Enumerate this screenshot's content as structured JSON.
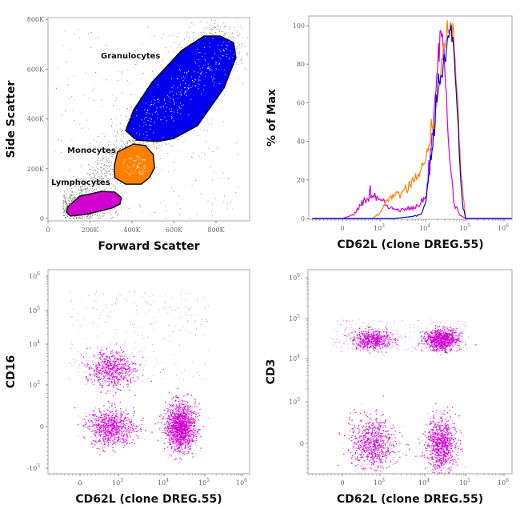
{
  "chart_data": [
    {
      "type": "scatter",
      "xlabel": "Forward Scatter",
      "ylabel": "Side Scatter",
      "xlim": [
        0,
        960000
      ],
      "ylim": [
        0,
        810000
      ],
      "xticks": [
        {
          "v": 0,
          "label": "0"
        },
        {
          "v": 200000,
          "label": "200K"
        },
        {
          "v": 400000,
          "label": "400K"
        },
        {
          "v": 600000,
          "label": "600K"
        },
        {
          "v": 800000,
          "label": "800K"
        }
      ],
      "yticks": [
        {
          "v": 0,
          "label": "0"
        },
        {
          "v": 200000,
          "label": "200K"
        },
        {
          "v": 400000,
          "label": "400K"
        },
        {
          "v": 600000,
          "label": "600K"
        },
        {
          "v": 800000,
          "label": "800K"
        }
      ],
      "gates": [
        {
          "name": "Granulocytes",
          "color": "#0000ee",
          "polygon": [
            [
              370,
              354
            ],
            [
              419,
              315
            ],
            [
              522,
              309
            ],
            [
              598,
              321
            ],
            [
              712,
              373
            ],
            [
              838,
              524
            ],
            [
              895,
              646
            ],
            [
              884,
              707
            ],
            [
              819,
              733
            ],
            [
              743,
              733
            ],
            [
              636,
              675
            ],
            [
              495,
              547
            ],
            [
              408,
              437
            ]
          ]
        },
        {
          "name": "Monocytes",
          "color": "#ff8000",
          "polygon": [
            [
              331,
              267
            ],
            [
              408,
              299
            ],
            [
              463,
              293
            ],
            [
              501,
              257
            ],
            [
              507,
              203
            ],
            [
              483,
              164
            ],
            [
              444,
              138
            ],
            [
              370,
              138
            ],
            [
              318,
              164
            ],
            [
              316,
              212
            ]
          ]
        },
        {
          "name": "Lymphocytes",
          "color": "#d000d0",
          "polygon": [
            [
              95,
              48
            ],
            [
              152,
              90
            ],
            [
              255,
              109
            ],
            [
              318,
              106
            ],
            [
              349,
              84
            ],
            [
              343,
              58
            ],
            [
              305,
              42
            ],
            [
              179,
              16
            ],
            [
              107,
              10
            ],
            [
              88,
              26
            ]
          ]
        }
      ],
      "gate_units": "K",
      "background_color": "#888888"
    },
    {
      "type": "line",
      "xlabel": "CD62L (clone DREG.55)",
      "ylabel": "% of Max",
      "xscale": "biexponential",
      "ylim": [
        0,
        105
      ],
      "xticks": [
        {
          "v": 0,
          "base": "0",
          "exp": ""
        },
        {
          "v": 1000,
          "base": "10",
          "exp": "3"
        },
        {
          "v": 10000,
          "base": "10",
          "exp": "4"
        },
        {
          "v": 100000,
          "base": "10",
          "exp": "5"
        },
        {
          "v": 1000000,
          "base": "10",
          "exp": "6"
        }
      ],
      "yticks": [
        {
          "v": 0,
          "label": "0"
        },
        {
          "v": 20,
          "label": "20"
        },
        {
          "v": 40,
          "label": "40"
        },
        {
          "v": 60,
          "label": "60"
        },
        {
          "v": 80,
          "label": "80"
        },
        {
          "v": 100,
          "label": "100"
        }
      ],
      "series": [
        {
          "color": "#d000d0",
          "x": [
            -800,
            0,
            300,
            600,
            800,
            1000,
            1500,
            2000,
            3000,
            5000,
            7000,
            10000,
            15000,
            20000,
            25000,
            30000,
            40000,
            50000,
            70000,
            100000,
            1000000
          ],
          "y": [
            0,
            0,
            2,
            10,
            12,
            11,
            6,
            5,
            5,
            5,
            7,
            10,
            45,
            80,
            100,
            80,
            30,
            10,
            2,
            0,
            0
          ]
        },
        {
          "color": "#ff8000",
          "x": [
            -800,
            800,
            1000,
            1500,
            2000,
            3000,
            5000,
            7000,
            10000,
            15000,
            20000,
            30000,
            40000,
            50000,
            60000,
            80000,
            100000,
            1000000
          ],
          "y": [
            0,
            0,
            3,
            10,
            12,
            14,
            18,
            22,
            28,
            50,
            60,
            90,
            100,
            98,
            70,
            20,
            0,
            0
          ]
        },
        {
          "color": "#0000ee",
          "x": [
            -800,
            2000,
            5000,
            8000,
            10000,
            15000,
            20000,
            30000,
            40000,
            50000,
            60000,
            80000,
            100000,
            1000000
          ],
          "y": [
            0,
            0,
            1,
            2,
            8,
            40,
            65,
            85,
            95,
            92,
            60,
            10,
            0,
            0
          ]
        }
      ]
    },
    {
      "type": "scatter",
      "xlabel": "CD62L (clone DREG.55)",
      "ylabel": "CD16",
      "xscale": "biexponential",
      "yscale": "biexponential",
      "color": "#d000d0",
      "xticks": [
        {
          "v": 0,
          "base": "0",
          "exp": ""
        },
        {
          "v": 1000,
          "base": "10",
          "exp": "3"
        },
        {
          "v": 10000,
          "base": "10",
          "exp": "4"
        },
        {
          "v": 100000,
          "base": "10",
          "exp": "5"
        },
        {
          "v": 1000000,
          "base": "10",
          "exp": "6"
        }
      ],
      "yticks": [
        {
          "v": -1000,
          "base": "-10",
          "exp": "3"
        },
        {
          "v": 0,
          "base": "0",
          "exp": ""
        },
        {
          "v": 1000,
          "base": "10",
          "exp": "3"
        },
        {
          "v": 10000,
          "base": "10",
          "exp": "4"
        },
        {
          "v": 100000,
          "base": "10",
          "exp": "5"
        },
        {
          "v": 1000000,
          "base": "10",
          "exp": "6"
        }
      ],
      "clusters": [
        {
          "x": 800,
          "y": 2500
        },
        {
          "x": 800,
          "y": 0
        },
        {
          "x": 25000,
          "y": 0
        }
      ]
    },
    {
      "type": "scatter",
      "xlabel": "CD62L (clone DREG.55)",
      "ylabel": "CD3",
      "xscale": "biexponential",
      "yscale": "biexponential",
      "color": "#d000d0",
      "xticks": [
        {
          "v": 0,
          "base": "0",
          "exp": ""
        },
        {
          "v": 1000,
          "base": "10",
          "exp": "3"
        },
        {
          "v": 10000,
          "base": "10",
          "exp": "4"
        },
        {
          "v": 100000,
          "base": "10",
          "exp": "5"
        },
        {
          "v": 1000000,
          "base": "10",
          "exp": "6"
        }
      ],
      "yticks": [
        {
          "v": 0,
          "base": "0",
          "exp": ""
        },
        {
          "v": 1000,
          "base": "10",
          "exp": "3"
        },
        {
          "v": 10000,
          "base": "10",
          "exp": "4"
        },
        {
          "v": 100000,
          "base": "10",
          "exp": "5"
        },
        {
          "v": 1000000,
          "base": "10",
          "exp": "6"
        }
      ],
      "clusters": [
        {
          "x": 800,
          "y": 30000
        },
        {
          "x": 25000,
          "y": 30000
        },
        {
          "x": 800,
          "y": 0
        },
        {
          "x": 25000,
          "y": 0
        }
      ]
    }
  ]
}
